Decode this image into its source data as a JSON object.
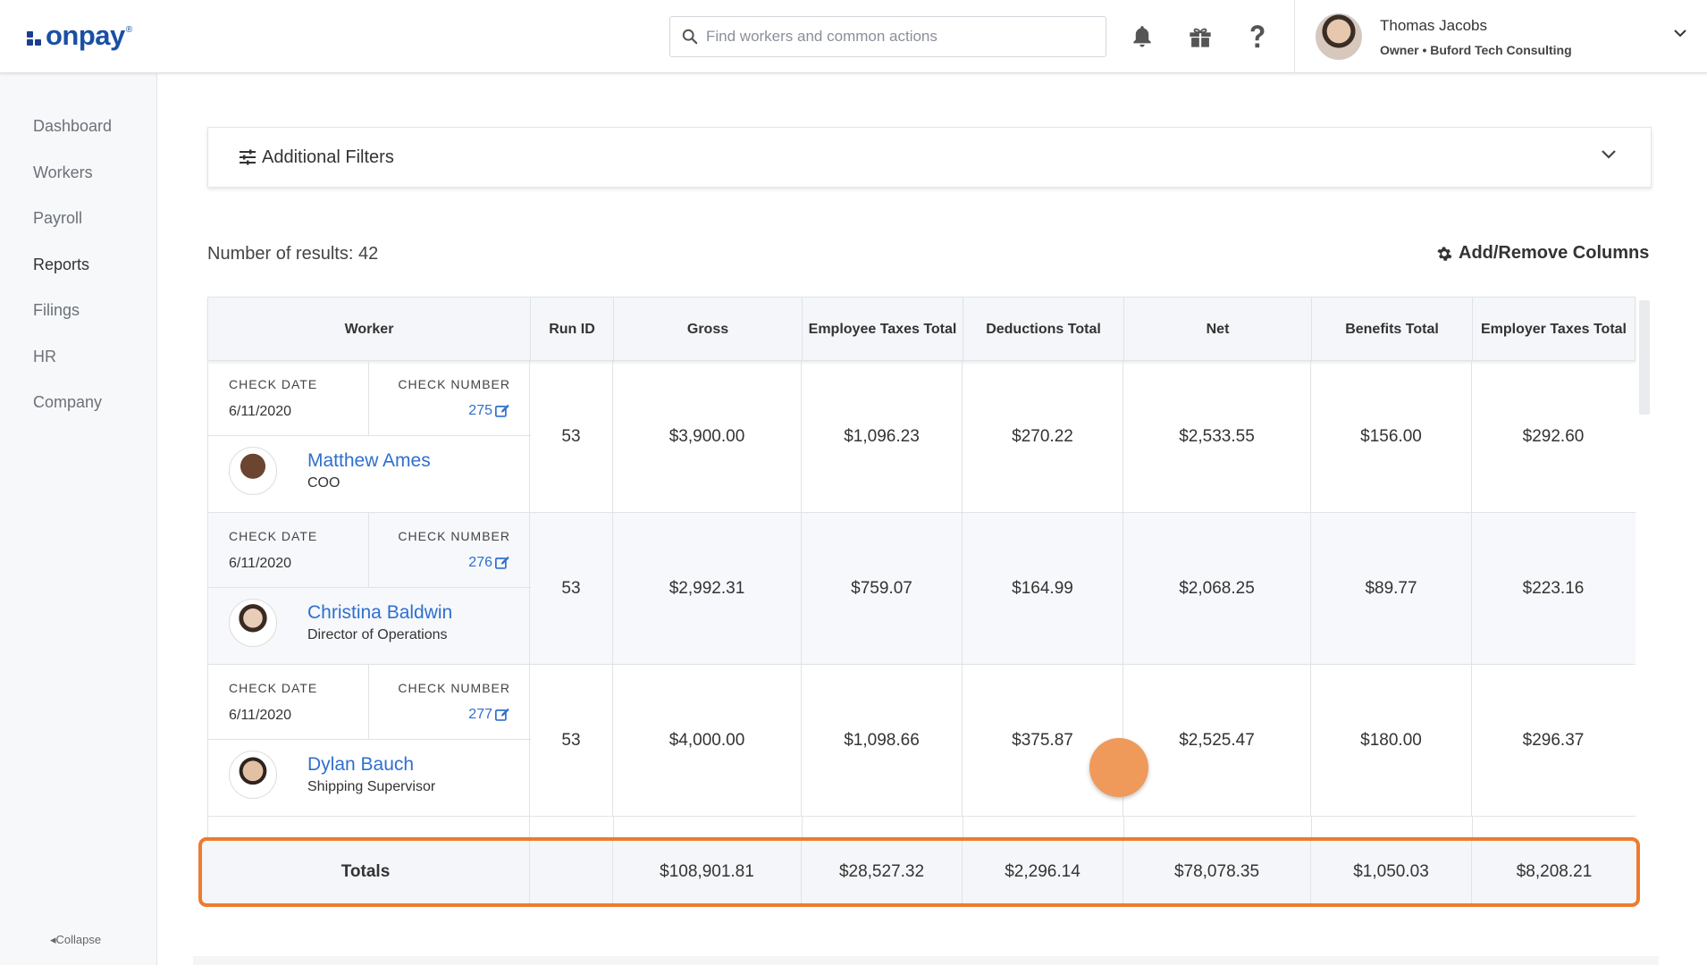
{
  "brand": {
    "name": "onpay",
    "reg": "®",
    "accent": "#1a4fa3"
  },
  "header": {
    "search_placeholder": "Find workers and common actions",
    "user_name": "Thomas Jacobs",
    "user_role": "Owner • Buford Tech Consulting"
  },
  "sidebar": {
    "items": [
      {
        "label": "Dashboard"
      },
      {
        "label": "Workers"
      },
      {
        "label": "Payroll"
      },
      {
        "label": "Reports"
      },
      {
        "label": "Filings"
      },
      {
        "label": "HR"
      },
      {
        "label": "Company"
      }
    ],
    "active": "Reports",
    "collapse_label": "Collapse"
  },
  "filters": {
    "label": "Additional Filters"
  },
  "results": {
    "label": "Number of results:",
    "count": "42"
  },
  "add_columns_label": "Add/Remove Columns",
  "table": {
    "headers": [
      "Worker",
      "Run ID",
      "Gross",
      "Employee Taxes Total",
      "Deductions Total",
      "Net",
      "Benefits Total",
      "Employer Taxes Total"
    ],
    "check_date_label": "CHECK DATE",
    "check_number_label": "CHECK NUMBER",
    "rows": [
      {
        "check_date": "6/11/2020",
        "check_number": "275",
        "name": "Matthew Ames",
        "title": "COO",
        "run_id": "53",
        "gross": "$3,900.00",
        "employee_taxes": "$1,096.23",
        "deductions": "$270.22",
        "net": "$2,533.55",
        "benefits": "$156.00",
        "employer_taxes": "$292.60"
      },
      {
        "check_date": "6/11/2020",
        "check_number": "276",
        "name": "Christina Baldwin",
        "title": "Director of Operations",
        "run_id": "53",
        "gross": "$2,992.31",
        "employee_taxes": "$759.07",
        "deductions": "$164.99",
        "net": "$2,068.25",
        "benefits": "$89.77",
        "employer_taxes": "$223.16"
      },
      {
        "check_date": "6/11/2020",
        "check_number": "277",
        "name": "Dylan Bauch",
        "title": "Shipping Supervisor",
        "run_id": "53",
        "gross": "$4,000.00",
        "employee_taxes": "$1,098.66",
        "deductions": "$375.87",
        "net": "$2,525.47",
        "benefits": "$180.00",
        "employer_taxes": "$296.37"
      }
    ],
    "totals": {
      "label": "Totals",
      "run_id": "",
      "gross": "$108,901.81",
      "employee_taxes": "$28,527.32",
      "deductions": "$2,296.14",
      "net": "$78,078.35",
      "benefits": "$1,050.03",
      "employer_taxes": "$8,208.21"
    }
  },
  "highlight_color": "#ee7b2e",
  "link_color": "#2f6fce"
}
